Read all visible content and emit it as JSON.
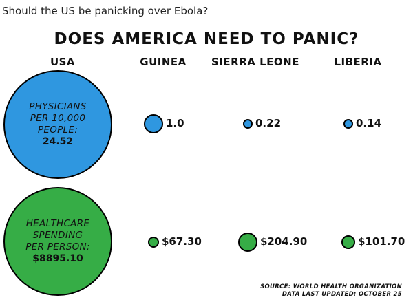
{
  "question": "Should the US be panicking over Ebola?",
  "chart_data": {
    "type": "bubble",
    "title": "DOES AMERICA NEED TO PANIC?",
    "categories": [
      "USA",
      "GUINEA",
      "SIERRA LEONE",
      "LIBERIA"
    ],
    "series": [
      {
        "name": "PHYSICIANS PER 10,000 PEOPLE:",
        "values": [
          24.52,
          1.0,
          0.22,
          0.14
        ],
        "labels": [
          "24.52",
          "1.0",
          "0.22",
          "0.14"
        ],
        "color": "#2f97e0"
      },
      {
        "name": "HEALTHCARE SPENDING PER PERSON:",
        "values": [
          8895.1,
          67.3,
          204.9,
          101.7
        ],
        "labels": [
          "$8895.10",
          "$67.30",
          "$204.90",
          "$101.70"
        ],
        "color": "#36ad46"
      }
    ],
    "source": "SOURCE: WORLD HEALTH ORGANIZATION",
    "updated": "DATA LAST UPDATED: OCTOBER 25"
  }
}
